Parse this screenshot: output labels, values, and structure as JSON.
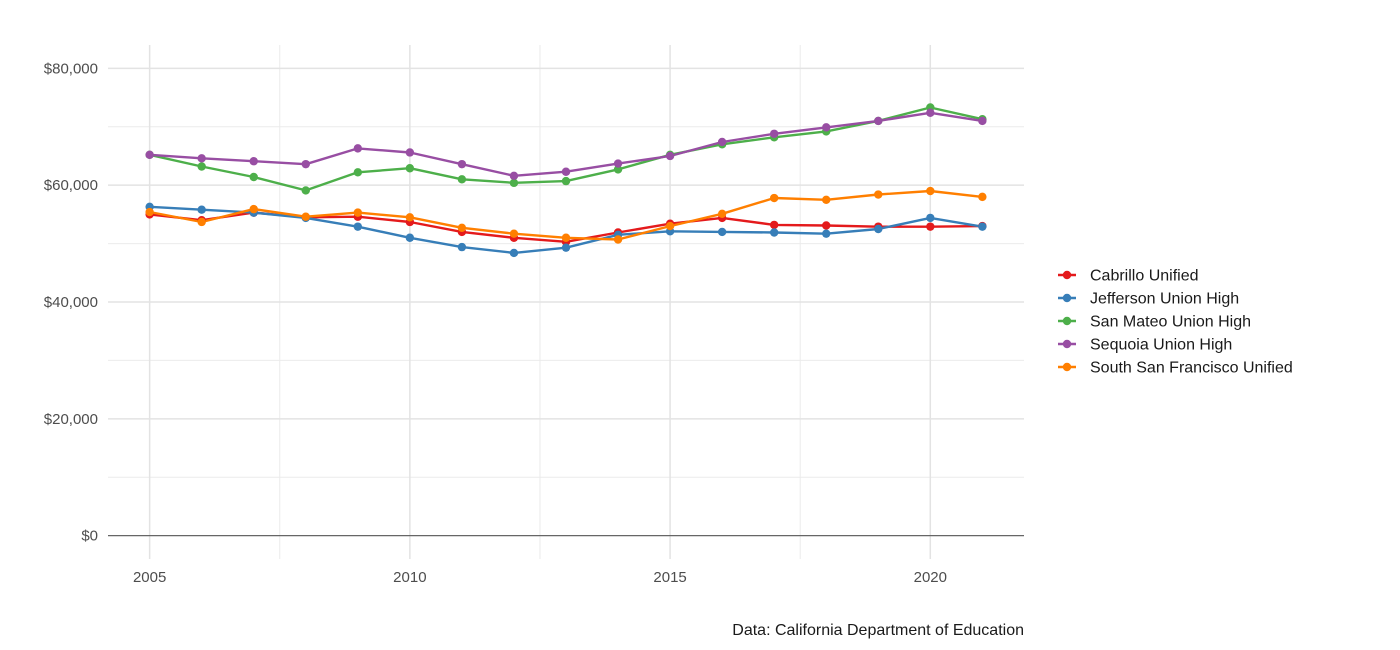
{
  "chart_data": {
    "type": "line",
    "title": "",
    "xlabel": "",
    "ylabel": "",
    "caption": "Data: California Department of Education",
    "x": [
      2005,
      2006,
      2007,
      2008,
      2009,
      2010,
      2011,
      2012,
      2013,
      2014,
      2015,
      2016,
      2017,
      2018,
      2019,
      2020,
      2021
    ],
    "xlim": [
      2004.2,
      2021.8
    ],
    "ylim": [
      -4000,
      84000
    ],
    "x_ticks": [
      2005,
      2010,
      2015,
      2020
    ],
    "x_tick_labels": [
      "2005",
      "2010",
      "2015",
      "2020"
    ],
    "y_ticks": [
      0,
      20000,
      40000,
      60000,
      80000
    ],
    "y_tick_labels": [
      "$0",
      "$20,000",
      "$40,000",
      "$60,000",
      "$80,000"
    ],
    "grid": true,
    "legend_position": "right",
    "series": [
      {
        "name": "Cabrillo Unified",
        "color": "#e41a1c",
        "values": [
          55000,
          54000,
          55300,
          54500,
          54600,
          53700,
          52000,
          51000,
          50300,
          51900,
          53400,
          54400,
          53200,
          53100,
          52900,
          52900,
          53000
        ]
      },
      {
        "name": "Jefferson Union High",
        "color": "#377eb8",
        "values": [
          56300,
          55800,
          55300,
          54400,
          52900,
          51000,
          49400,
          48400,
          49300,
          51500,
          52100,
          52000,
          51900,
          51700,
          52500,
          54400,
          52900
        ]
      },
      {
        "name": "San Mateo Union High",
        "color": "#4daf4a",
        "values": [
          65200,
          63200,
          61400,
          59100,
          62200,
          62900,
          61000,
          60400,
          60700,
          62700,
          65200,
          67000,
          68200,
          69200,
          71000,
          73300,
          71300
        ]
      },
      {
        "name": "Sequoia Union High",
        "color": "#984ea3",
        "values": [
          65200,
          64600,
          64100,
          63600,
          66300,
          65600,
          63600,
          61600,
          62300,
          63700,
          65000,
          67400,
          68800,
          69900,
          71000,
          72400,
          71000
        ]
      },
      {
        "name": "South San Francisco Unified",
        "color": "#ff7f00",
        "values": [
          55400,
          53700,
          55900,
          54600,
          55300,
          54500,
          52700,
          51700,
          51000,
          50700,
          53000,
          55100,
          57800,
          57500,
          58400,
          59000,
          58000
        ]
      }
    ]
  }
}
